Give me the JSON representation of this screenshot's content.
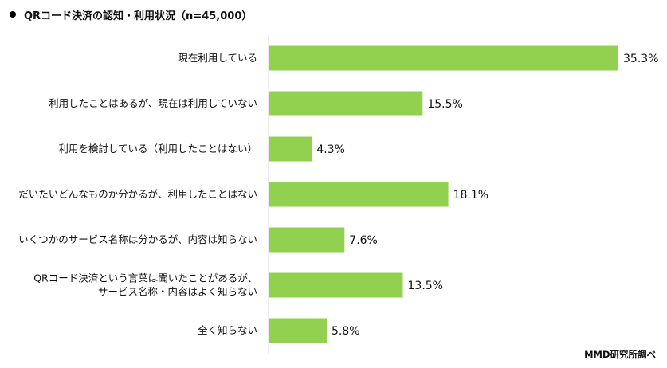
{
  "chart_data": {
    "type": "bar",
    "orientation": "horizontal",
    "title": "QRコード決済の認知・利用状況（n=45,000）",
    "categories": [
      [
        "現在利用している"
      ],
      [
        "利用したことはあるが、現在は利用していない"
      ],
      [
        "利用を検討している（利用したことはない）"
      ],
      [
        "だいたいどんなものか分かるが、利用したことはない"
      ],
      [
        "いくつかのサービス名称は分かるが、内容は知らない"
      ],
      [
        "QRコード決済という言葉は聞いたことがあるが、",
        "サービス名称・内容はよく知らない"
      ],
      [
        "全く知らない"
      ]
    ],
    "values": [
      35.3,
      15.5,
      4.3,
      18.1,
      7.6,
      13.5,
      5.8
    ],
    "value_labels": [
      "35.3%",
      "15.5%",
      "4.3%",
      "18.1%",
      "7.6%",
      "13.5%",
      "5.8%"
    ],
    "xlim": [
      0,
      35.3
    ],
    "bar_color": "#92d050",
    "axis_color": "#d9d9d9",
    "grid": false,
    "legend": "none"
  },
  "source": "MMD研究所調べ"
}
